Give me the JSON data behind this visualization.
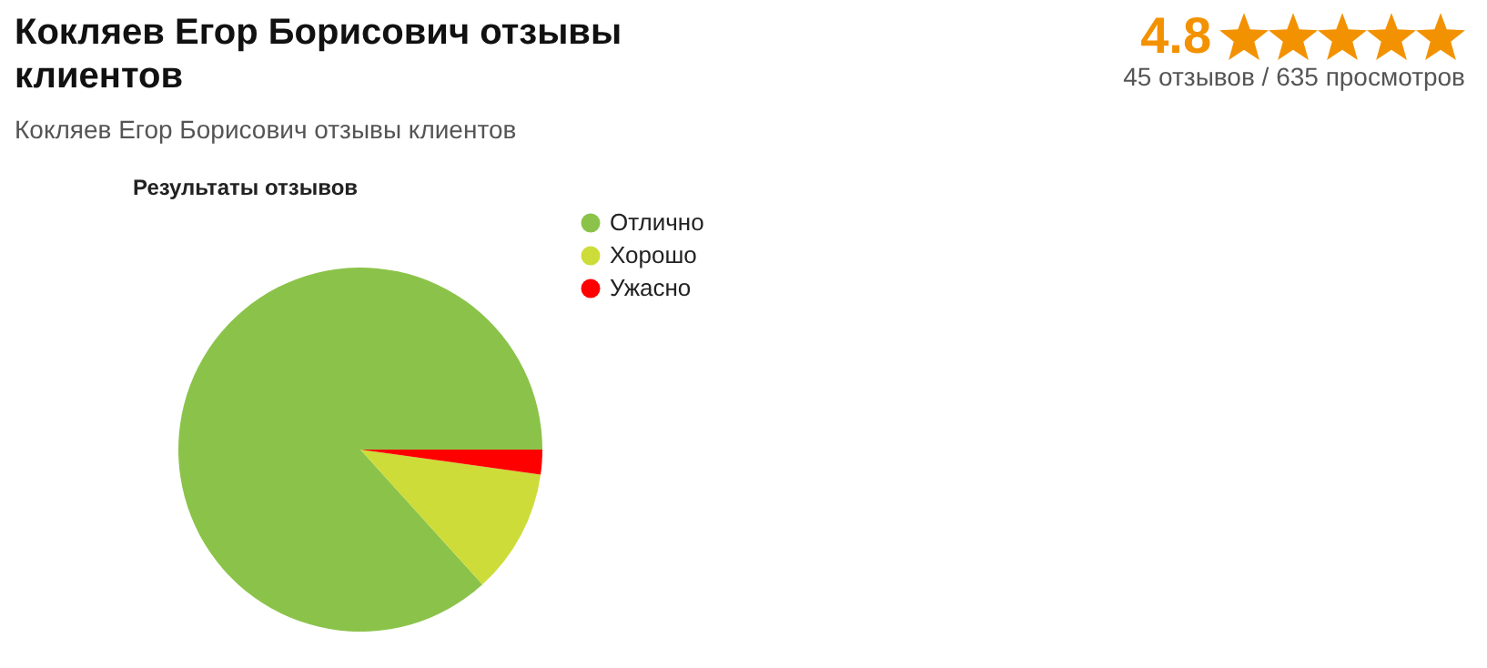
{
  "chart_data": {
    "type": "pie",
    "title": "Кокляев Егор Борисович отзывы клиентов",
    "subtitle": "Кокляев Егор Борисович отзывы клиентов",
    "annotations": [
      "Результаты отзывов",
      "4.8",
      "45 отзывов / 635 просмотров"
    ],
    "categories": [
      "Отлично",
      "Хорошо",
      "Ужасно"
    ],
    "values": [
      86.7,
      11.1,
      2.2
    ],
    "colors": [
      "#8bc34a",
      "#cddc39",
      "#ff0000"
    ],
    "legend": "top right"
  }
}
